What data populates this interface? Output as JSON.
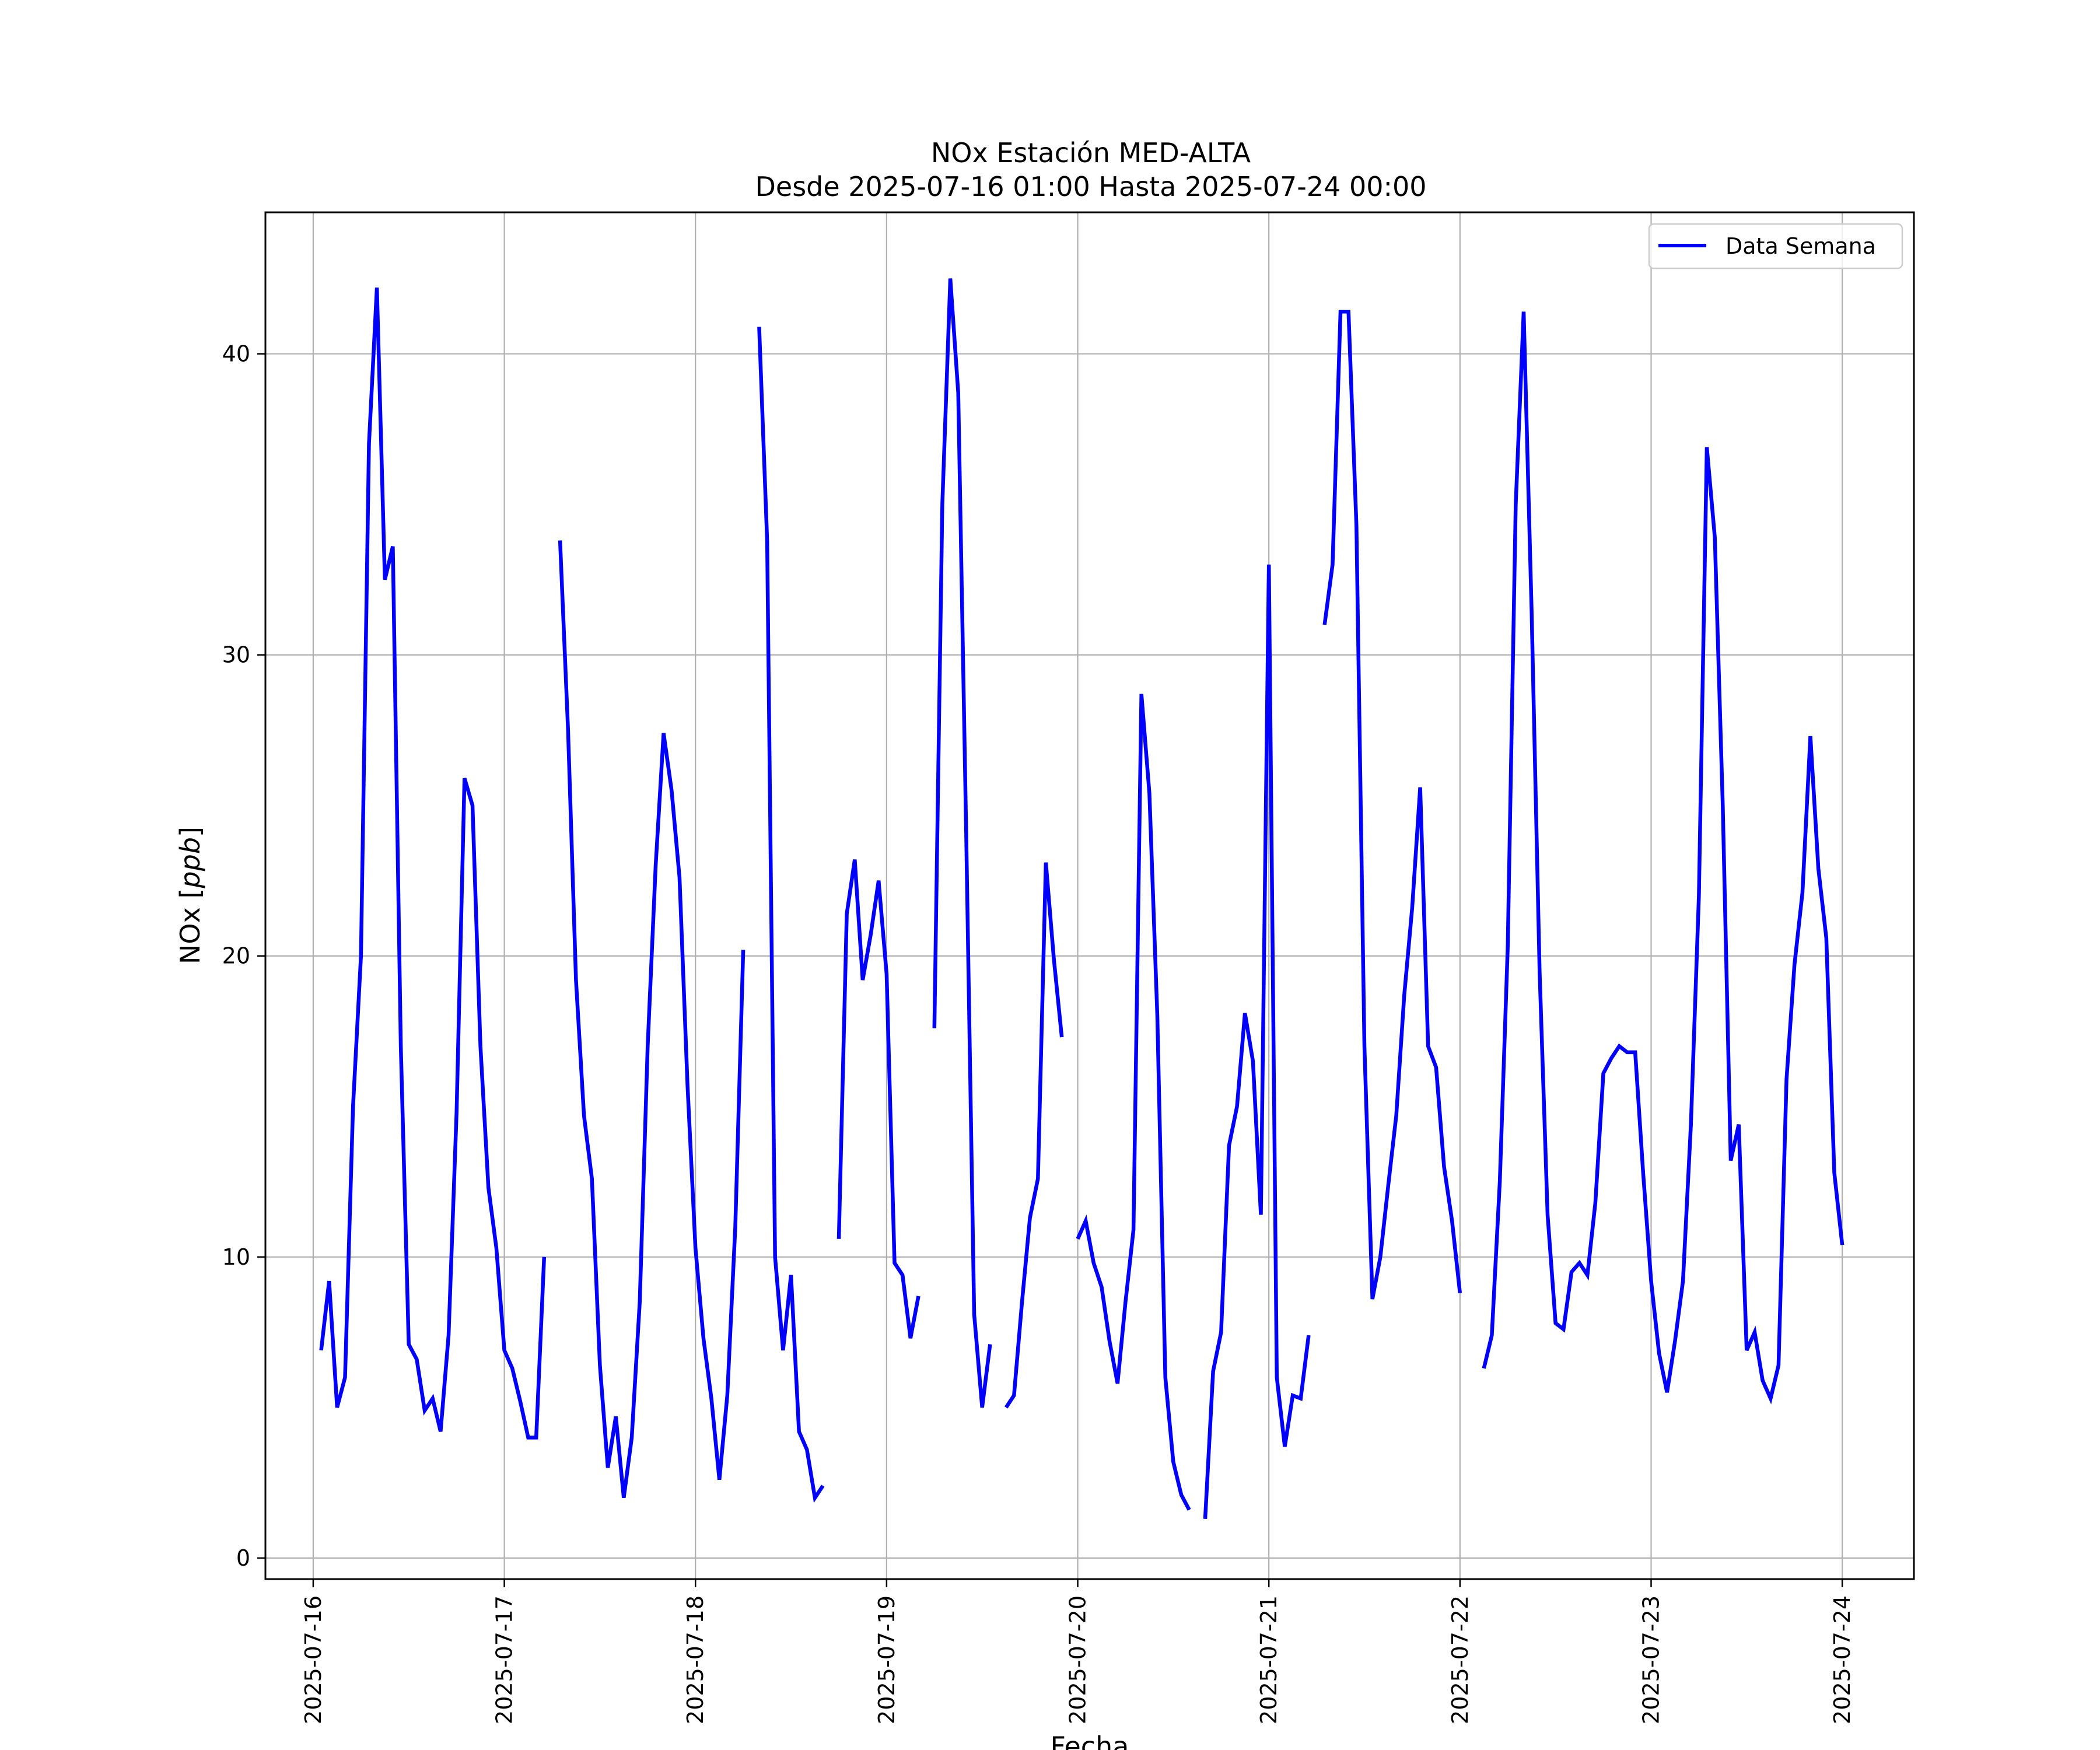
{
  "chart_data": {
    "type": "line",
    "title": [
      "NOx Estación MED-ALTA",
      "Desde 2025-07-16 01:00 Hasta 2025-07-24 00:00"
    ],
    "xlabel": "Fecha",
    "ylabel": "NOx [ppb]",
    "xlim": [
      "2025-07-15 18:00",
      "2025-07-24 09:00"
    ],
    "ylim": [
      -0.7,
      44.7
    ],
    "xticks": [
      "2025-07-16",
      "2025-07-17",
      "2025-07-18",
      "2025-07-19",
      "2025-07-20",
      "2025-07-21",
      "2025-07-22",
      "2025-07-23",
      "2025-07-24"
    ],
    "yticks": [
      0,
      10,
      20,
      30,
      40
    ],
    "grid": true,
    "legend_position": "upper right",
    "series": [
      {
        "name": "Data Semana",
        "color": "#0000ff",
        "segments": [
          [
            [
              "2025-07-16 01:00",
              6.9
            ],
            [
              "2025-07-16 02:00",
              9.2
            ],
            [
              "2025-07-16 03:00",
              5.0
            ],
            [
              "2025-07-16 04:00",
              6.0
            ],
            [
              "2025-07-16 05:00",
              15.0
            ],
            [
              "2025-07-16 06:00",
              20.0
            ],
            [
              "2025-07-16 07:00",
              37.0
            ],
            [
              "2025-07-16 08:00",
              42.2
            ],
            [
              "2025-07-16 09:00",
              32.5
            ],
            [
              "2025-07-16 10:00",
              33.6
            ],
            [
              "2025-07-16 11:00",
              17.0
            ],
            [
              "2025-07-16 12:00",
              7.1
            ],
            [
              "2025-07-16 13:00",
              6.6
            ],
            [
              "2025-07-16 14:00",
              4.9
            ],
            [
              "2025-07-16 15:00",
              5.3
            ],
            [
              "2025-07-16 16:00",
              4.2
            ],
            [
              "2025-07-16 17:00",
              7.4
            ],
            [
              "2025-07-16 18:00",
              14.8
            ],
            [
              "2025-07-16 19:00",
              25.9
            ],
            [
              "2025-07-16 20:00",
              25.0
            ],
            [
              "2025-07-16 21:00",
              17.0
            ],
            [
              "2025-07-16 22:00",
              12.3
            ],
            [
              "2025-07-16 23:00",
              10.3
            ],
            [
              "2025-07-17 00:00",
              6.9
            ],
            [
              "2025-07-17 01:00",
              6.3
            ],
            [
              "2025-07-17 02:00",
              5.2
            ],
            [
              "2025-07-17 03:00",
              4.0
            ],
            [
              "2025-07-17 04:00",
              4.0
            ],
            [
              "2025-07-17 05:00",
              10.0
            ]
          ],
          [
            [
              "2025-07-17 07:00",
              33.8
            ],
            [
              "2025-07-17 08:00",
              27.5
            ],
            [
              "2025-07-17 09:00",
              19.2
            ],
            [
              "2025-07-17 10:00",
              14.7
            ],
            [
              "2025-07-17 11:00",
              12.6
            ],
            [
              "2025-07-17 12:00",
              6.4
            ],
            [
              "2025-07-17 13:00",
              3.0
            ],
            [
              "2025-07-17 14:00",
              4.7
            ],
            [
              "2025-07-17 15:00",
              2.0
            ],
            [
              "2025-07-17 16:00",
              4.0
            ],
            [
              "2025-07-17 17:00",
              8.5
            ],
            [
              "2025-07-17 18:00",
              17.0
            ],
            [
              "2025-07-17 19:00",
              23.0
            ],
            [
              "2025-07-17 20:00",
              27.4
            ],
            [
              "2025-07-17 21:00",
              25.5
            ],
            [
              "2025-07-17 22:00",
              22.6
            ],
            [
              "2025-07-17 23:00",
              15.7
            ],
            [
              "2025-07-18 00:00",
              10.3
            ],
            [
              "2025-07-18 01:00",
              7.3
            ],
            [
              "2025-07-18 02:00",
              5.3
            ],
            [
              "2025-07-18 03:00",
              2.6
            ],
            [
              "2025-07-18 04:00",
              5.4
            ],
            [
              "2025-07-18 05:00",
              11.0
            ],
            [
              "2025-07-18 06:00",
              20.2
            ]
          ],
          [
            [
              "2025-07-18 08:00",
              40.9
            ],
            [
              "2025-07-18 09:00",
              33.8
            ],
            [
              "2025-07-18 10:00",
              10.0
            ],
            [
              "2025-07-18 11:00",
              6.9
            ],
            [
              "2025-07-18 12:00",
              9.4
            ],
            [
              "2025-07-18 13:00",
              4.2
            ],
            [
              "2025-07-18 14:00",
              3.6
            ],
            [
              "2025-07-18 15:00",
              2.0
            ],
            [
              "2025-07-18 16:00",
              2.4
            ]
          ],
          [
            [
              "2025-07-18 18:00",
              10.6
            ],
            [
              "2025-07-18 19:00",
              21.4
            ],
            [
              "2025-07-18 20:00",
              23.2
            ],
            [
              "2025-07-18 21:00",
              19.2
            ],
            [
              "2025-07-18 22:00",
              20.7
            ],
            [
              "2025-07-18 23:00",
              22.5
            ],
            [
              "2025-07-19 00:00",
              19.4
            ],
            [
              "2025-07-19 01:00",
              9.8
            ],
            [
              "2025-07-19 02:00",
              9.4
            ],
            [
              "2025-07-19 03:00",
              7.3
            ],
            [
              "2025-07-19 04:00",
              8.7
            ]
          ],
          [
            [
              "2025-07-19 06:00",
              17.6
            ],
            [
              "2025-07-19 07:00",
              35.0
            ],
            [
              "2025-07-19 08:00",
              42.5
            ],
            [
              "2025-07-19 09:00",
              38.7
            ],
            [
              "2025-07-19 10:00",
              24.0
            ],
            [
              "2025-07-19 11:00",
              8.1
            ],
            [
              "2025-07-19 12:00",
              5.0
            ],
            [
              "2025-07-19 13:00",
              7.1
            ]
          ],
          [
            [
              "2025-07-19 15:00",
              5.0
            ],
            [
              "2025-07-19 16:00",
              5.4
            ],
            [
              "2025-07-19 17:00",
              8.5
            ],
            [
              "2025-07-19 18:00",
              11.3
            ],
            [
              "2025-07-19 19:00",
              12.6
            ],
            [
              "2025-07-19 20:00",
              23.1
            ],
            [
              "2025-07-19 21:00",
              19.9
            ],
            [
              "2025-07-19 22:00",
              17.3
            ]
          ],
          [
            [
              "2025-07-20 00:00",
              10.6
            ],
            [
              "2025-07-20 01:00",
              11.2
            ],
            [
              "2025-07-20 02:00",
              9.8
            ],
            [
              "2025-07-20 03:00",
              9.0
            ],
            [
              "2025-07-20 04:00",
              7.2
            ],
            [
              "2025-07-20 05:00",
              5.8
            ],
            [
              "2025-07-20 06:00",
              8.5
            ],
            [
              "2025-07-20 07:00",
              10.9
            ],
            [
              "2025-07-20 08:00",
              28.7
            ],
            [
              "2025-07-20 09:00",
              25.4
            ],
            [
              "2025-07-20 10:00",
              18.0
            ],
            [
              "2025-07-20 11:00",
              6.0
            ],
            [
              "2025-07-20 12:00",
              3.2
            ],
            [
              "2025-07-20 13:00",
              2.1
            ],
            [
              "2025-07-20 14:00",
              1.6
            ]
          ],
          [
            [
              "2025-07-20 16:00",
              1.3
            ],
            [
              "2025-07-20 17:00",
              6.2
            ],
            [
              "2025-07-20 18:00",
              7.5
            ],
            [
              "2025-07-20 19:00",
              13.7
            ],
            [
              "2025-07-20 20:00",
              15.0
            ],
            [
              "2025-07-20 21:00",
              18.1
            ],
            [
              "2025-07-20 22:00",
              16.5
            ],
            [
              "2025-07-20 23:00",
              11.4
            ],
            [
              "2025-07-21 00:00",
              33.0
            ],
            [
              "2025-07-21 01:00",
              6.0
            ],
            [
              "2025-07-21 02:00",
              3.7
            ],
            [
              "2025-07-21 03:00",
              5.4
            ],
            [
              "2025-07-21 04:00",
              5.3
            ],
            [
              "2025-07-21 05:00",
              7.4
            ]
          ],
          [
            [
              "2025-07-21 07:00",
              31.0
            ],
            [
              "2025-07-21 08:00",
              33.0
            ],
            [
              "2025-07-21 09:00",
              41.4
            ],
            [
              "2025-07-21 10:00",
              41.4
            ],
            [
              "2025-07-21 11:00",
              34.3
            ],
            [
              "2025-07-21 12:00",
              17.0
            ],
            [
              "2025-07-21 13:00",
              8.6
            ],
            [
              "2025-07-21 14:00",
              10.0
            ],
            [
              "2025-07-21 15:00",
              12.4
            ],
            [
              "2025-07-21 16:00",
              14.7
            ],
            [
              "2025-07-21 17:00",
              18.7
            ],
            [
              "2025-07-21 18:00",
              21.6
            ],
            [
              "2025-07-21 19:00",
              25.6
            ],
            [
              "2025-07-21 20:00",
              17.0
            ],
            [
              "2025-07-21 21:00",
              16.3
            ],
            [
              "2025-07-21 22:00",
              13.0
            ],
            [
              "2025-07-21 23:00",
              11.2
            ],
            [
              "2025-07-22 00:00",
              8.8
            ]
          ],
          [
            [
              "2025-07-22 03:00",
              6.3
            ],
            [
              "2025-07-22 04:00",
              7.4
            ],
            [
              "2025-07-22 05:00",
              12.5
            ],
            [
              "2025-07-22 06:00",
              20.3
            ],
            [
              "2025-07-22 07:00",
              35.0
            ],
            [
              "2025-07-22 08:00",
              41.4
            ],
            [
              "2025-07-22 09:00",
              31.4
            ],
            [
              "2025-07-22 10:00",
              19.5
            ],
            [
              "2025-07-22 11:00",
              11.4
            ],
            [
              "2025-07-22 12:00",
              7.8
            ],
            [
              "2025-07-22 13:00",
              7.6
            ],
            [
              "2025-07-22 14:00",
              9.5
            ],
            [
              "2025-07-22 15:00",
              9.8
            ],
            [
              "2025-07-22 16:00",
              9.4
            ],
            [
              "2025-07-22 17:00",
              11.8
            ],
            [
              "2025-07-22 18:00",
              16.1
            ],
            [
              "2025-07-22 19:00",
              16.6
            ],
            [
              "2025-07-22 20:00",
              17.0
            ],
            [
              "2025-07-22 21:00",
              16.8
            ],
            [
              "2025-07-22 22:00",
              16.8
            ],
            [
              "2025-07-22 23:00",
              12.8
            ],
            [
              "2025-07-23 00:00",
              9.2
            ],
            [
              "2025-07-23 01:00",
              6.8
            ],
            [
              "2025-07-23 02:00",
              5.5
            ],
            [
              "2025-07-23 03:00",
              7.2
            ],
            [
              "2025-07-23 04:00",
              9.2
            ],
            [
              "2025-07-23 05:00",
              14.4
            ],
            [
              "2025-07-23 06:00",
              22.0
            ],
            [
              "2025-07-23 07:00",
              36.9
            ],
            [
              "2025-07-23 08:00",
              33.9
            ],
            [
              "2025-07-23 09:00",
              25.0
            ],
            [
              "2025-07-23 10:00",
              13.2
            ],
            [
              "2025-07-23 11:00",
              14.4
            ],
            [
              "2025-07-23 12:00",
              6.9
            ],
            [
              "2025-07-23 13:00",
              7.5
            ],
            [
              "2025-07-23 14:00",
              5.9
            ],
            [
              "2025-07-23 15:00",
              5.3
            ],
            [
              "2025-07-23 16:00",
              6.4
            ],
            [
              "2025-07-23 17:00",
              15.9
            ],
            [
              "2025-07-23 18:00",
              19.7
            ],
            [
              "2025-07-23 19:00",
              22.1
            ],
            [
              "2025-07-23 20:00",
              27.3
            ],
            [
              "2025-07-23 21:00",
              22.9
            ],
            [
              "2025-07-23 22:00",
              20.6
            ],
            [
              "2025-07-23 23:00",
              12.8
            ],
            [
              "2025-07-24 00:00",
              10.4
            ]
          ]
        ]
      }
    ]
  }
}
